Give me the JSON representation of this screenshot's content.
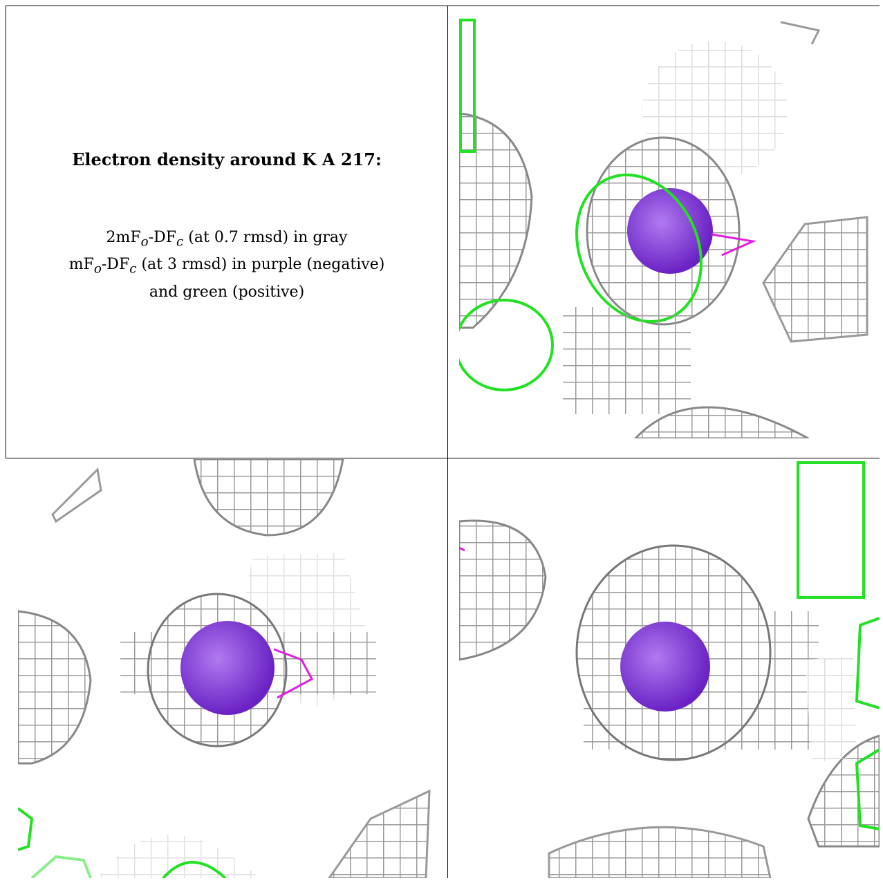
{
  "legend": {
    "title": "Electron density around K A 217:",
    "line1": "2mF",
    "line1_sub_o": "o",
    "line1_mid": "-DF",
    "line1_sub_c": "c",
    "line1_rest": " (at 0.7 rmsd) in gray",
    "line2": "mF",
    "line2_sub_o": "o",
    "line2_mid": "-DF",
    "line2_sub_c": "c",
    "line2_rest": " (at 3 rmsd) in purple (negative)",
    "line3": "and green (positive)"
  },
  "colors": {
    "mesh_gray": "#8c8c8c",
    "mesh_light": "#d4d4d4",
    "mesh_green": "#22e022",
    "mesh_magenta": "#e020e0",
    "atom_purple": "#8a3ed8"
  },
  "panels": [
    {
      "name": "view-1",
      "atom": "K"
    },
    {
      "name": "view-2",
      "atom": "K"
    },
    {
      "name": "view-3",
      "atom": "K"
    }
  ]
}
